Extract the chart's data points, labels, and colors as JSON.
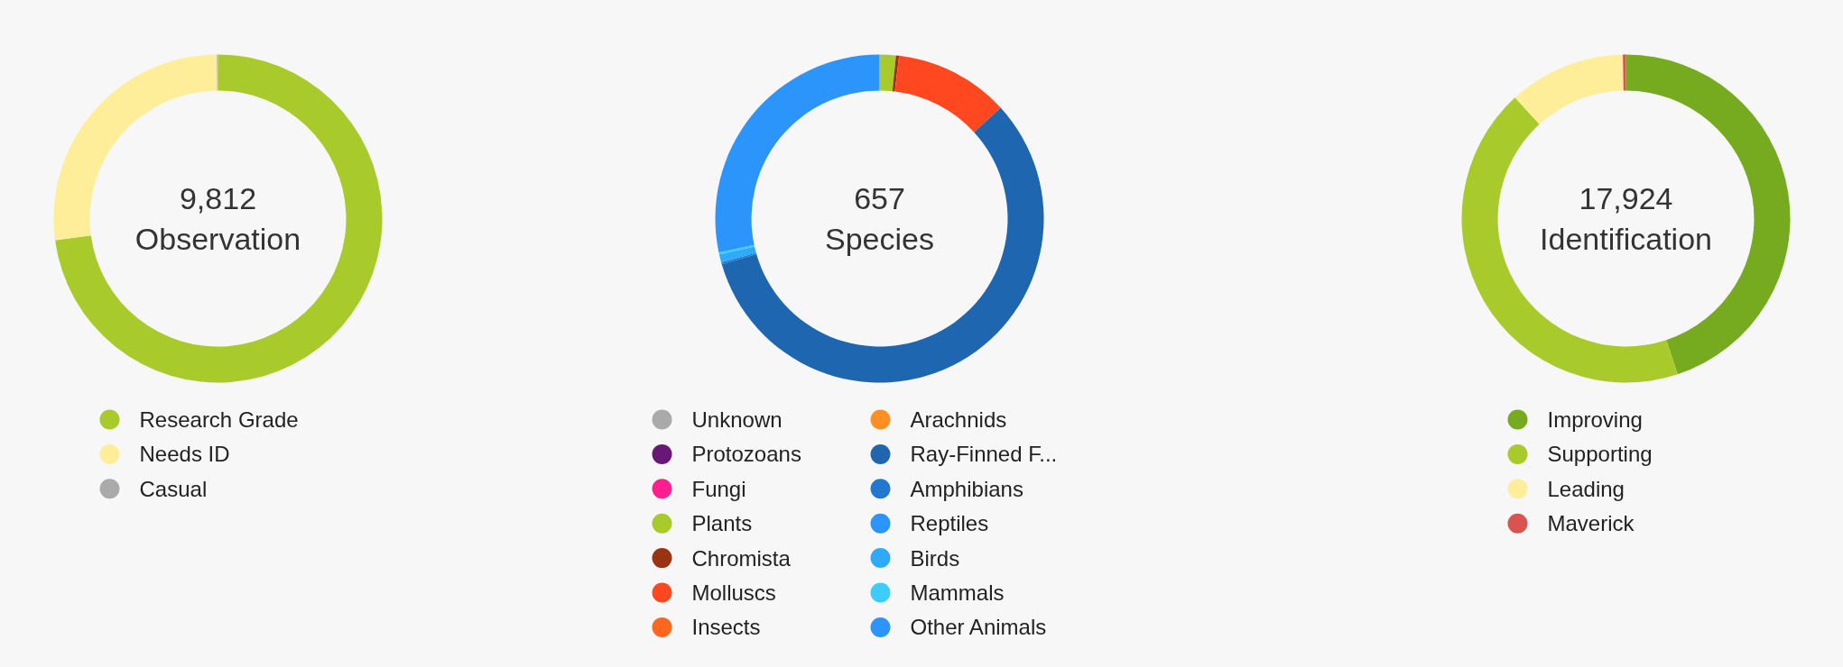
{
  "chart_data": [
    {
      "type": "donut",
      "title": "9,812",
      "subtitle": "Observation",
      "categories": [
        "Research Grade",
        "Needs ID",
        "Casual"
      ],
      "values": [
        72.9,
        27.0,
        0.1
      ],
      "colors": [
        "#a8cb2b",
        "#ffee99",
        "#aaaaaa"
      ],
      "legend": "bottom"
    },
    {
      "type": "donut",
      "title": "657",
      "subtitle": "Species",
      "categories": [
        "Unknown",
        "Protozoans",
        "Fungi",
        "Plants",
        "Chromista",
        "Molluscs",
        "Insects",
        "Arachnids",
        "Ray-Finned F...",
        "Amphibians",
        "Reptiles",
        "Birds",
        "Mammals",
        "Other Animals"
      ],
      "values": [
        0,
        0,
        0,
        1.6,
        0.3,
        11.3,
        0,
        0,
        57.3,
        0.2,
        0,
        0.8,
        0.2,
        28.3
      ],
      "colors": [
        "#aaaaaa",
        "#691776",
        "#ff1f8f",
        "#a8cb2b",
        "#993311",
        "#ff4720",
        "#ff661e",
        "#ff8f23",
        "#1e66b0",
        "#2277d0",
        "#2b95fb",
        "#2eaafa",
        "#3dcdfc",
        "#2b95fb"
      ],
      "legend": "bottom"
    },
    {
      "type": "donut",
      "title": "17,924",
      "subtitle": "Identification",
      "categories": [
        "Improving",
        "Supporting",
        "Leading",
        "Maverick"
      ],
      "values": [
        44.9,
        43.3,
        11.5,
        0.3
      ],
      "colors": [
        "#76ab1f",
        "#a8cb2b",
        "#ffee99",
        "#d9534f"
      ],
      "legend": "bottom"
    }
  ]
}
